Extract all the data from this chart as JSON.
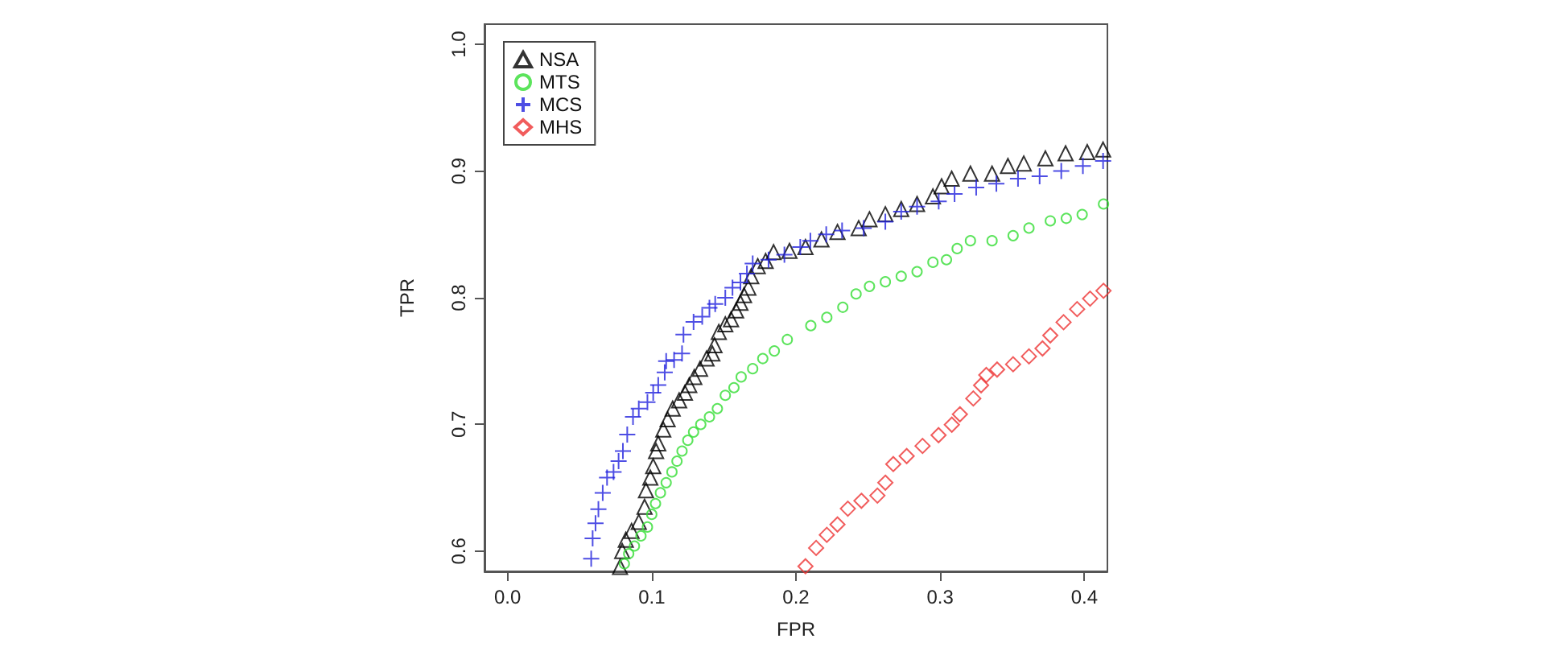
{
  "chart_data": {
    "type": "scatter",
    "xlabel": "FPR",
    "ylabel": "TPR",
    "xlim": [
      -0.016,
      0.416
    ],
    "ylim": [
      0.584,
      1.016
    ],
    "xticks": [
      {
        "value": 0,
        "label": "0.0"
      },
      0.1,
      0.2,
      0.3,
      0.4
    ],
    "yticks": [
      0.6,
      0.7,
      0.8,
      0.9,
      {
        "value": 1,
        "label": "1.0"
      }
    ],
    "grid": false,
    "legend": "top left",
    "series": [
      {
        "name": "NSA",
        "color": "#000000",
        "marker": "triangle",
        "x": [
          0.078,
          0.0795,
          0.082,
          0.086,
          0.091,
          0.095,
          0.096,
          0.099,
          0.101,
          0.103,
          0.1045,
          0.108,
          0.111,
          0.1145,
          0.119,
          0.123,
          0.126,
          0.1295,
          0.1335,
          0.138,
          0.142,
          0.1435,
          0.1465,
          0.151,
          0.155,
          0.1585,
          0.1615,
          0.164,
          0.167,
          0.169,
          0.1735,
          0.179,
          0.1845,
          0.1955,
          0.2066,
          0.2177,
          0.2288,
          0.2435,
          0.251,
          0.262,
          0.273,
          0.284,
          0.295,
          0.301,
          0.308,
          0.321,
          0.336,
          0.347,
          0.358,
          0.373,
          0.387,
          0.402,
          0.413
        ],
        "values": [
          0.5875,
          0.6,
          0.609,
          0.616,
          0.623,
          0.635,
          0.648,
          0.658,
          0.667,
          0.679,
          0.685,
          0.696,
          0.704,
          0.7125,
          0.719,
          0.725,
          0.731,
          0.7375,
          0.744,
          0.752,
          0.756,
          0.7625,
          0.773,
          0.779,
          0.783,
          0.79,
          0.796,
          0.802,
          0.808,
          0.817,
          0.825,
          0.829,
          0.836,
          0.837,
          0.84,
          0.846,
          0.852,
          0.855,
          0.862,
          0.866,
          0.87,
          0.874,
          0.88,
          0.888,
          0.894,
          0.898,
          0.898,
          0.904,
          0.906,
          0.91,
          0.914,
          0.915,
          0.917
        ]
      },
      {
        "name": "MTS",
        "color": "#33dd33",
        "marker": "circle",
        "x": [
          0.081,
          0.084,
          0.088,
          0.0925,
          0.097,
          0.1,
          0.1026,
          0.106,
          0.11,
          0.114,
          0.1175,
          0.121,
          0.125,
          0.129,
          0.134,
          0.14,
          0.1455,
          0.151,
          0.157,
          0.162,
          0.17,
          0.177,
          0.185,
          0.194,
          0.2103,
          0.2214,
          0.2325,
          0.2417,
          0.251,
          0.262,
          0.273,
          0.284,
          0.295,
          0.3044,
          0.3118,
          0.321,
          0.336,
          0.3506,
          0.3616,
          0.3764,
          0.3875,
          0.3985,
          0.4133
        ],
        "values": [
          0.59,
          0.598,
          0.604,
          0.612,
          0.619,
          0.629,
          0.6375,
          0.646,
          0.654,
          0.6625,
          0.671,
          0.679,
          0.6875,
          0.694,
          0.7,
          0.706,
          0.7125,
          0.723,
          0.729,
          0.7375,
          0.744,
          0.752,
          0.758,
          0.767,
          0.778,
          0.7845,
          0.7925,
          0.803,
          0.809,
          0.8126,
          0.817,
          0.8206,
          0.828,
          0.83,
          0.8388,
          0.845,
          0.845,
          0.849,
          0.855,
          0.8607,
          0.8627,
          0.8657,
          0.874
        ]
      },
      {
        "name": "MCS",
        "color": "#2222dd",
        "marker": "cross",
        "x": [
          0.058,
          0.059,
          0.061,
          0.063,
          0.066,
          0.069,
          0.0735,
          0.077,
          0.08,
          0.083,
          0.087,
          0.091,
          0.097,
          0.101,
          0.1045,
          0.109,
          0.11,
          0.1155,
          0.121,
          0.122,
          0.129,
          0.135,
          0.14,
          0.144,
          0.151,
          0.156,
          0.1615,
          0.166,
          0.17,
          0.181,
          0.192,
          0.203,
          0.21,
          0.221,
          0.232,
          0.247,
          0.262,
          0.273,
          0.284,
          0.299,
          0.31,
          0.325,
          0.339,
          0.354,
          0.369,
          0.384,
          0.399,
          0.413
        ],
        "values": [
          0.594,
          0.61,
          0.622,
          0.633,
          0.646,
          0.658,
          0.6625,
          0.671,
          0.679,
          0.692,
          0.706,
          0.7125,
          0.7175,
          0.725,
          0.731,
          0.741,
          0.75,
          0.751,
          0.756,
          0.771,
          0.781,
          0.785,
          0.792,
          0.795,
          0.8,
          0.808,
          0.812,
          0.819,
          0.827,
          0.83,
          0.834,
          0.84,
          0.845,
          0.85,
          0.853,
          0.855,
          0.86,
          0.868,
          0.872,
          0.876,
          0.882,
          0.887,
          0.89,
          0.894,
          0.896,
          0.9,
          0.904,
          0.908
        ]
      },
      {
        "name": "MHS",
        "color": "#ee3333",
        "marker": "diamond",
        "x": [
          0.2066,
          0.214,
          0.2214,
          0.2288,
          0.236,
          0.2454,
          0.2565,
          0.262,
          0.2675,
          0.2768,
          0.2878,
          0.2989,
          0.3081,
          0.3137,
          0.323,
          0.3284,
          0.332,
          0.3395,
          0.3506,
          0.3616,
          0.371,
          0.3764,
          0.3856,
          0.395,
          0.404,
          0.4133
        ],
        "values": [
          0.588,
          0.6025,
          0.6128,
          0.621,
          0.6335,
          0.6397,
          0.6438,
          0.654,
          0.6687,
          0.675,
          0.683,
          0.6915,
          0.6998,
          0.708,
          0.7205,
          0.7309,
          0.739,
          0.7433,
          0.7475,
          0.7537,
          0.76,
          0.7703,
          0.7807,
          0.791,
          0.7993,
          0.8055
        ]
      }
    ]
  }
}
